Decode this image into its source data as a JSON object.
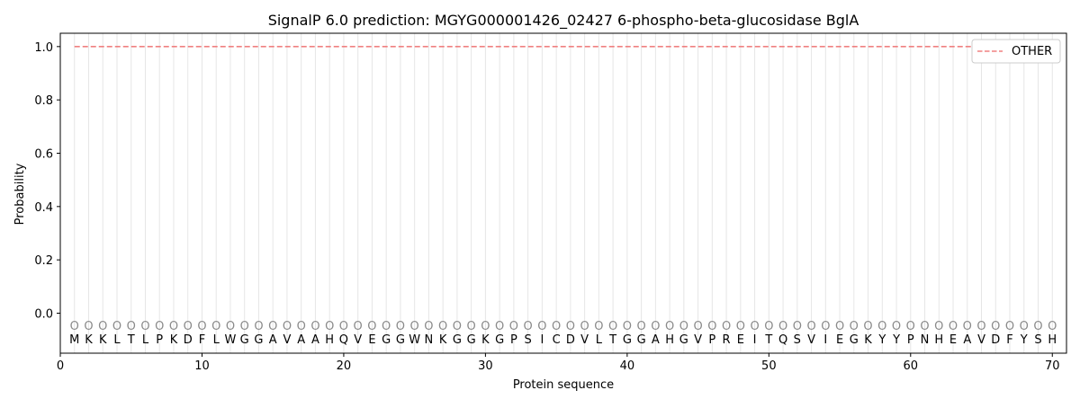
{
  "chart_data": {
    "type": "line",
    "title": "SignalP 6.0 prediction: MGYG000001426_02427 6-phospho-beta-glucosidase BglA",
    "xlabel": "Protein sequence",
    "ylabel": "Probability",
    "xlim": [
      0,
      71
    ],
    "ylim": [
      -0.15,
      1.05
    ],
    "xticks": [
      0,
      10,
      20,
      30,
      40,
      50,
      60,
      70
    ],
    "yticks": [
      0.0,
      0.2,
      0.4,
      0.6,
      0.8,
      1.0
    ],
    "ytick_labels": [
      "0.0",
      "0.2",
      "0.4",
      "0.6",
      "0.8",
      "1.0"
    ],
    "grid": "vertical lines at each residue",
    "legend_position": "top-right",
    "series": [
      {
        "name": "OTHER",
        "color": "#f08080",
        "style": "dashed",
        "x": [
          1,
          70
        ],
        "y": [
          1.0,
          1.0
        ]
      }
    ],
    "sequence": [
      "M",
      "K",
      "K",
      "L",
      "T",
      "L",
      "P",
      "K",
      "D",
      "F",
      "L",
      "W",
      "G",
      "G",
      "A",
      "V",
      "A",
      "A",
      "H",
      "Q",
      "V",
      "E",
      "G",
      "G",
      "W",
      "N",
      "K",
      "G",
      "G",
      "K",
      "G",
      "P",
      "S",
      "I",
      "C",
      "D",
      "V",
      "L",
      "T",
      "G",
      "G",
      "A",
      "H",
      "G",
      "V",
      "P",
      "R",
      "E",
      "I",
      "T",
      "Q",
      "S",
      "V",
      "I",
      "E",
      "G",
      "K",
      "Y",
      "Y",
      "P",
      "N",
      "H",
      "E",
      "A",
      "V",
      "D",
      "F",
      "Y",
      "S",
      "H"
    ],
    "region_label": "O",
    "region_label_y": -0.045
  }
}
